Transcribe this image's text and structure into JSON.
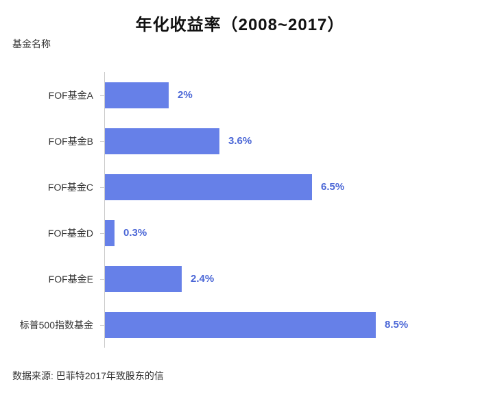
{
  "title": "年化收益率（2008~2017）",
  "y_axis_title": "基金名称",
  "footer": "数据来源: 巴菲特2017年致股东的信",
  "colors": {
    "bar": "#6680E8",
    "value_label": "#4A66D6",
    "axis": "#CCCCCC",
    "category_label": "#333333",
    "title": "#111111"
  },
  "chart_data": {
    "type": "bar",
    "orientation": "horizontal",
    "title": "年化收益率（2008~2017）",
    "xlabel": "",
    "ylabel": "基金名称",
    "categories": [
      "FOF基金A",
      "FOF基金B",
      "FOF基金C",
      "FOF基金D",
      "FOF基金E",
      "标普500指数基金"
    ],
    "values": [
      2,
      3.6,
      6.5,
      0.3,
      2.4,
      8.5
    ],
    "value_labels": [
      "2%",
      "3.6%",
      "6.5%",
      "0.3%",
      "2.4%",
      "8.5%"
    ],
    "unit": "%",
    "xlim": [
      0,
      10
    ],
    "grid": false,
    "legend": false,
    "source_note": "数据来源: 巴菲特2017年致股东的信"
  }
}
